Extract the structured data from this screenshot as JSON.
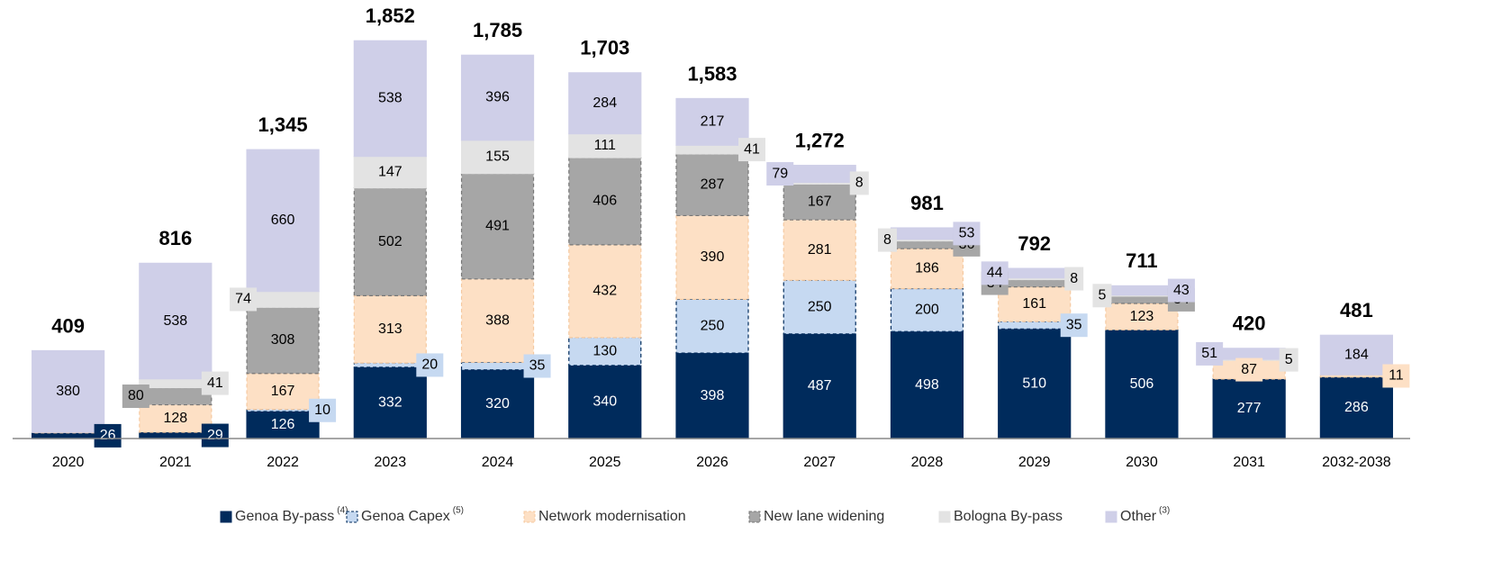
{
  "chart_data": {
    "type": "stacked_bar",
    "categories": [
      "2020",
      "2021",
      "2022",
      "2023",
      "2024",
      "2025",
      "2026",
      "2027",
      "2028",
      "2029",
      "2030",
      "2031",
      "2032-2038"
    ],
    "series": [
      {
        "name": "Genoa By-pass",
        "superscript": "(4)",
        "color": "#002b5c",
        "border": "#002b5c",
        "values": [
          26,
          29,
          126,
          332,
          320,
          340,
          398,
          487,
          498,
          510,
          506,
          277,
          286
        ]
      },
      {
        "name": "Genoa Capex",
        "superscript": "(5)",
        "color": "#c6d9f1",
        "border": "#002b5c",
        "values": [
          0,
          0,
          10,
          20,
          35,
          130,
          250,
          250,
          200,
          35,
          0,
          0,
          0
        ]
      },
      {
        "name": "Network modernisation",
        "color": "#fde0c5",
        "border": "#f5c9a0",
        "values": [
          3,
          128,
          167,
          313,
          388,
          432,
          390,
          281,
          186,
          161,
          123,
          87,
          11
        ]
      },
      {
        "name": "New lane widening",
        "color": "#a6a6a6",
        "border": "#777777",
        "values": [
          0,
          80,
          308,
          502,
          491,
          406,
          287,
          167,
          36,
          34,
          34,
          0,
          0
        ]
      },
      {
        "name": "Bologna By-pass",
        "color": "#e3e3e3",
        "border": "#e3e3e3",
        "values": [
          0,
          41,
          74,
          147,
          155,
          111,
          41,
          8,
          8,
          8,
          5,
          5,
          0
        ]
      },
      {
        "name": "Other",
        "superscript": "(3)",
        "color": "#cfcfe8",
        "border": "#cfcfe8",
        "values": [
          380,
          538,
          660,
          538,
          396,
          284,
          217,
          79,
          53,
          44,
          43,
          51,
          184
        ]
      }
    ],
    "totals": {
      "values": [
        409,
        816,
        1345,
        1852,
        1785,
        1703,
        1583,
        1272,
        981,
        792,
        711,
        420,
        481
      ],
      "value_labels": [
        "409",
        "816",
        "1,345",
        "1,852",
        "1,785",
        "1,703",
        "1,583",
        "1,272",
        "981",
        "792",
        "711",
        "420",
        "481"
      ]
    },
    "ylim": [
      0,
      2000
    ]
  }
}
